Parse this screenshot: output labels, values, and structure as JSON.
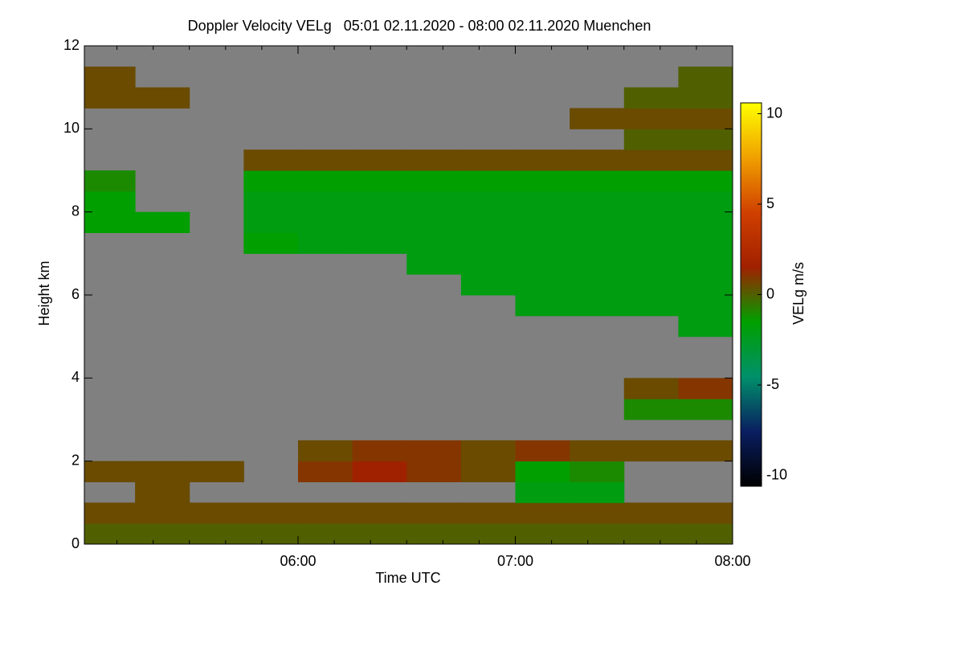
{
  "chart_data": {
    "type": "heatmap",
    "title": "Doppler Velocity VELg   05:01 02.11.2020 - 08:00 02.11.2020 Muenchen",
    "x_label": "Time UTC",
    "y_label": "Height km",
    "colorbar_label": "VELg m/s",
    "xlim": [
      301,
      480
    ],
    "xticks": [
      {
        "value": 360,
        "label": "06:00"
      },
      {
        "value": 420,
        "label": "07:00"
      },
      {
        "value": 480,
        "label": "08:00"
      }
    ],
    "xminorticks": [
      310,
      320,
      330,
      340,
      350,
      370,
      380,
      390,
      400,
      410,
      430,
      440,
      450,
      460,
      470
    ],
    "ylim": [
      0,
      12
    ],
    "yticks": [
      0,
      2,
      4,
      6,
      8,
      10,
      12
    ],
    "clim": [
      -10.6,
      10.6
    ],
    "cticks": [
      10,
      5,
      0,
      -5,
      -10
    ],
    "colormap": [
      "#000000",
      "#0a1e60",
      "#00906a",
      "#00a000",
      "#a02000",
      "#d04000",
      "#f0a000",
      "#ffff00"
    ],
    "missing_color": "#808080",
    "xbins": [
      300,
      315,
      330,
      345,
      360,
      375,
      390,
      405,
      420,
      435,
      450,
      465,
      480
    ],
    "ybins": [
      0,
      0.5,
      1,
      1.5,
      2,
      2.5,
      3,
      3.5,
      4,
      4.5,
      5,
      5.5,
      6,
      6.5,
      7,
      7.5,
      8,
      8.5,
      9,
      9.5,
      10,
      10.5,
      11,
      11.5,
      12
    ],
    "values": [
      [
        0,
        0,
        0,
        0,
        0,
        0,
        0,
        0,
        0,
        0,
        0,
        0
      ],
      [
        0.5,
        0.5,
        0.5,
        0.5,
        0.5,
        0.5,
        0.5,
        0.5,
        0.5,
        0.5,
        0.5,
        0.5
      ],
      [
        null,
        0.5,
        null,
        null,
        null,
        null,
        null,
        null,
        -2,
        -2,
        null,
        null
      ],
      [
        0.5,
        0.5,
        0.5,
        null,
        1,
        1.5,
        1,
        0.5,
        -1.5,
        -1,
        null,
        null
      ],
      [
        null,
        null,
        null,
        null,
        0.5,
        1,
        1,
        0.5,
        1,
        0.5,
        0.5,
        0.5
      ],
      [
        null,
        null,
        null,
        null,
        null,
        null,
        null,
        null,
        null,
        null,
        null,
        null
      ],
      [
        null,
        null,
        null,
        null,
        null,
        null,
        null,
        null,
        null,
        null,
        -1,
        -1
      ],
      [
        null,
        null,
        null,
        null,
        null,
        null,
        null,
        null,
        null,
        null,
        0.5,
        1
      ],
      [
        null,
        null,
        null,
        null,
        null,
        null,
        null,
        null,
        null,
        null,
        null,
        null
      ],
      [
        null,
        null,
        null,
        null,
        null,
        null,
        null,
        null,
        null,
        null,
        null,
        null
      ],
      [
        null,
        null,
        null,
        null,
        null,
        null,
        null,
        null,
        null,
        null,
        null,
        -2
      ],
      [
        null,
        null,
        null,
        null,
        null,
        null,
        null,
        null,
        -2,
        -2,
        -2,
        -2
      ],
      [
        null,
        null,
        null,
        null,
        null,
        null,
        null,
        -2,
        -2,
        -2,
        -2,
        -2
      ],
      [
        null,
        null,
        null,
        null,
        null,
        null,
        -2,
        -2,
        -2,
        -2,
        -2,
        -2
      ],
      [
        null,
        null,
        null,
        -1.5,
        -2,
        -2,
        -2,
        -2,
        -2,
        -2,
        -2,
        -2
      ],
      [
        -1.5,
        -1.5,
        null,
        -2,
        -2,
        -2,
        -2,
        -2,
        -2,
        -2,
        -2,
        -2
      ],
      [
        -1.5,
        null,
        null,
        -2,
        -2,
        -2,
        -2,
        -2,
        -2,
        -2,
        -2,
        -2
      ],
      [
        -1,
        null,
        null,
        -1.5,
        -1.5,
        -1.5,
        -1.5,
        -1.5,
        -1.5,
        -1.5,
        -1.5,
        -1.5
      ],
      [
        null,
        null,
        null,
        0.5,
        0.5,
        0.5,
        0.5,
        0.5,
        0.5,
        0.5,
        0.5,
        0.5
      ],
      [
        null,
        null,
        null,
        null,
        null,
        null,
        null,
        null,
        null,
        null,
        0,
        0
      ],
      [
        null,
        null,
        null,
        null,
        null,
        null,
        null,
        null,
        null,
        0.5,
        0.5,
        0.5
      ],
      [
        0.5,
        0.5,
        null,
        null,
        null,
        null,
        null,
        null,
        null,
        null,
        0,
        0
      ],
      [
        0.5,
        null,
        null,
        null,
        null,
        null,
        null,
        null,
        null,
        null,
        null,
        0
      ],
      [
        null,
        null,
        null,
        null,
        null,
        null,
        null,
        null,
        null,
        null,
        null,
        null
      ]
    ]
  }
}
